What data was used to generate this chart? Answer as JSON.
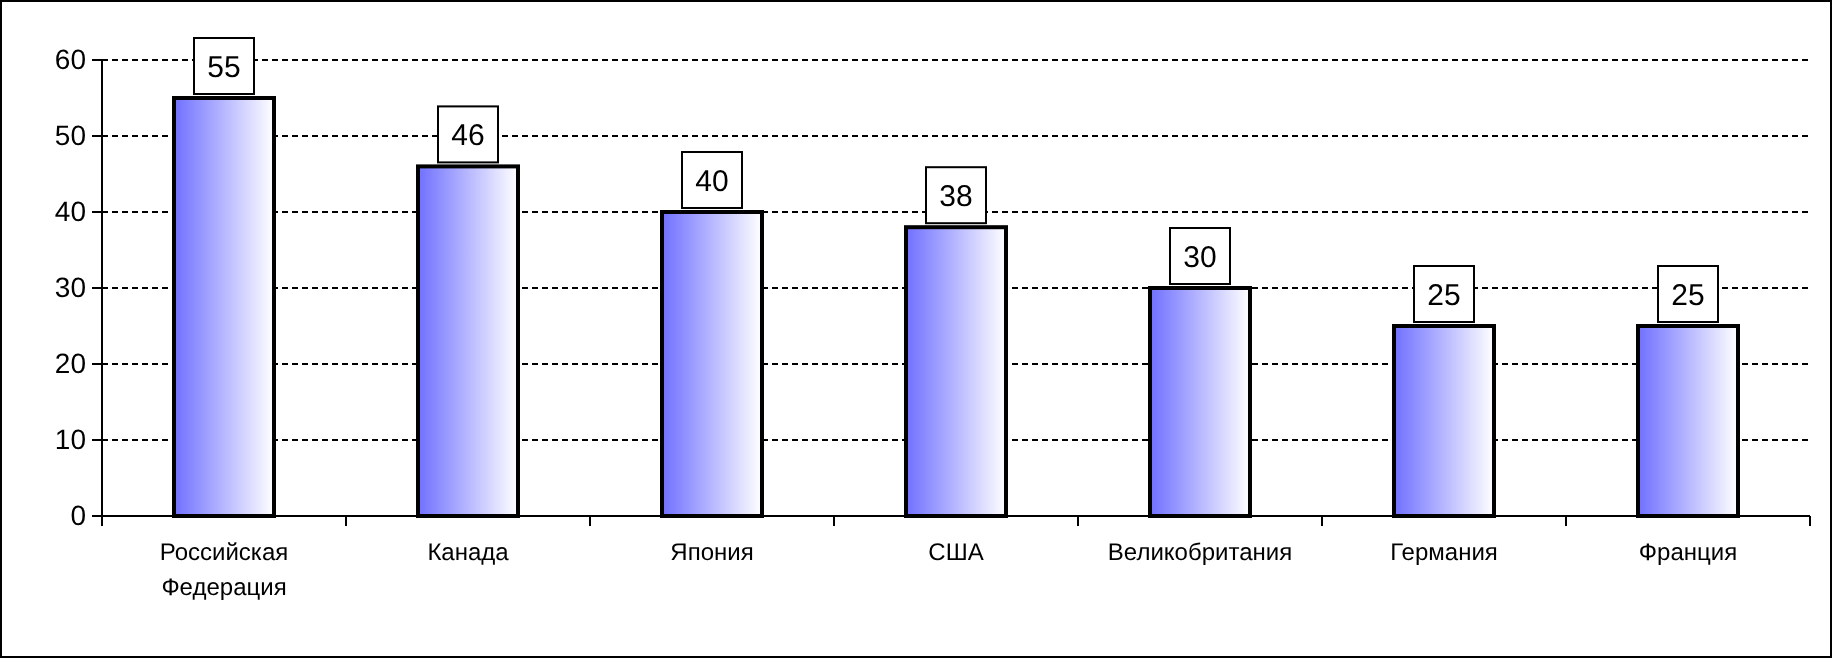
{
  "chart_data": {
    "type": "bar",
    "categories": [
      "Российская Федерация",
      "Канада",
      "Япония",
      "США",
      "Великобритания",
      "Германия",
      "Франция"
    ],
    "values": [
      55,
      46,
      40,
      38,
      30,
      25,
      25
    ],
    "color": "#7070ff",
    "ylim": [
      0,
      60
    ],
    "yticks": [
      0,
      10,
      20,
      30,
      40,
      50,
      60
    ],
    "grid": "y",
    "data_labels": true
  }
}
